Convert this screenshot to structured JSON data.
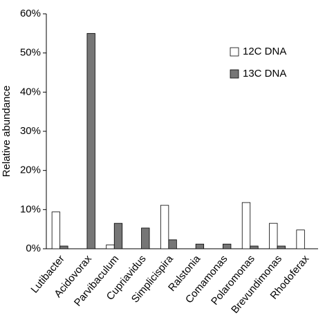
{
  "chart_data": {
    "type": "bar",
    "y_label": "Relative abundance",
    "categories": [
      "Lutibacter",
      "Acidovorax",
      "Parvibaculum",
      "Cupriavidus",
      "Simplicispira",
      "Ralstonia",
      "Comamonas",
      "Polaromonas",
      "Brevundimonas",
      "Rhodoferax"
    ],
    "series": [
      {
        "name": "12C DNA",
        "color": "#ffffff",
        "values": [
          9.4,
          0,
          1.0,
          0,
          11.1,
          0,
          0,
          11.8,
          6.5,
          4.8
        ]
      },
      {
        "name": "13C DNA",
        "color": "#767676",
        "values": [
          0.7,
          55,
          6.5,
          5.3,
          2.3,
          1.2,
          1.2,
          0.7,
          0.7,
          0
        ]
      }
    ],
    "ylim": [
      0,
      60
    ],
    "yticks": [
      {
        "value": 0,
        "label": "0%"
      },
      {
        "value": 10,
        "label": "10%"
      },
      {
        "value": 20,
        "label": "20%"
      },
      {
        "value": 30,
        "label": "30%"
      },
      {
        "value": 40,
        "label": "40%"
      },
      {
        "value": 50,
        "label": "50%"
      },
      {
        "value": 60,
        "label": "60%"
      }
    ],
    "legend": "upper right",
    "grid": false
  }
}
